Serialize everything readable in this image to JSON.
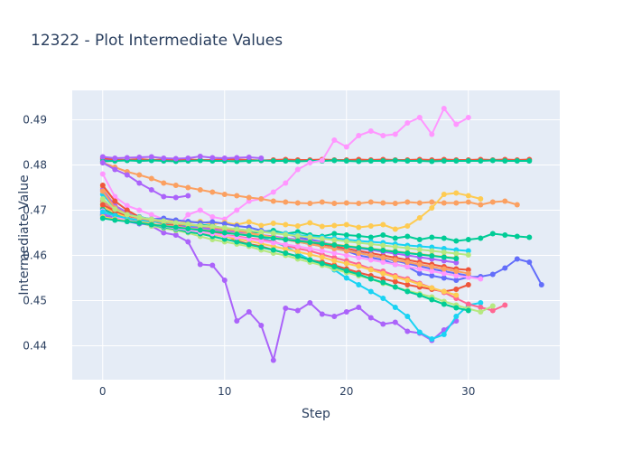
{
  "chart_data": {
    "type": "line",
    "title": "12322 - Plot Intermediate Values",
    "xlabel": "Step",
    "ylabel": "Intermediate Value",
    "xlim": [
      -2.5,
      37.5
    ],
    "ylim": [
      0.4325,
      0.4965
    ],
    "x_ticks": [
      0,
      10,
      20,
      30
    ],
    "y_ticks": [
      0.44,
      0.45,
      0.46,
      0.47,
      0.48,
      0.49
    ],
    "grid": true,
    "plot_bg": "#e5ecf6",
    "series": [
      {
        "color": "#636efa",
        "values": [
          0.4812,
          0.481,
          0.4811,
          0.4809,
          0.481,
          0.4811,
          0.481,
          0.4812
        ]
      },
      {
        "color": "#ef553b",
        "values": [
          0.4815,
          0.4812,
          0.4811,
          0.4813,
          0.4811,
          0.4812,
          0.4811,
          0.4812,
          0.4811,
          0.4811,
          0.4813,
          0.4812,
          0.4811,
          0.481,
          0.4811,
          0.4812,
          0.4811,
          0.4811,
          0.4812,
          0.4811,
          0.4811,
          0.4812,
          0.4811,
          0.4812,
          0.4811,
          0.4811,
          0.4812,
          0.4811,
          0.4812,
          0.4811,
          0.4811,
          0.4812,
          0.4811,
          0.4812,
          0.4811,
          0.4812
        ]
      },
      {
        "color": "#00cc96",
        "values": [
          0.4808,
          0.4809,
          0.481,
          0.4809,
          0.481,
          0.4809,
          0.4808,
          0.4809,
          0.481,
          0.4809,
          0.4809,
          0.4808,
          0.4809,
          0.481,
          0.4809,
          0.4809,
          0.4808,
          0.4809,
          0.4809,
          0.481,
          0.4809,
          0.4808,
          0.4809,
          0.4809,
          0.481,
          0.4809,
          0.4809,
          0.4808,
          0.4809,
          0.4809,
          0.4809,
          0.4809,
          0.481,
          0.4809,
          0.4809,
          0.4809
        ]
      },
      {
        "color": "#ab63fa",
        "values": [
          0.4818,
          0.4815,
          0.4816,
          0.4817,
          0.4818,
          0.4815,
          0.4814,
          0.4815,
          0.4819,
          0.4816,
          0.4815,
          0.4816,
          0.4817,
          0.4815
        ]
      },
      {
        "color": "#ff97ff",
        "values": [
          0.478,
          0.473,
          0.471,
          0.47,
          0.469,
          0.468,
          0.466,
          0.469,
          0.47,
          0.4685,
          0.468,
          0.47,
          0.472,
          0.4725,
          0.474,
          0.476,
          0.479,
          0.4805,
          0.481,
          0.4855,
          0.484,
          0.4865,
          0.4875,
          0.4865,
          0.4868,
          0.4893,
          0.4905,
          0.4868,
          0.4925,
          0.489,
          0.4905
        ]
      },
      {
        "color": "#fba061",
        "values": [
          0.4805,
          0.4795,
          0.4785,
          0.4778,
          0.477,
          0.476,
          0.4755,
          0.475,
          0.4745,
          0.474,
          0.4735,
          0.4732,
          0.4728,
          0.4725,
          0.472,
          0.4718,
          0.4716,
          0.4715,
          0.4718,
          0.4715,
          0.4716,
          0.4715,
          0.4718,
          0.4716,
          0.4715,
          0.4718,
          0.4716,
          0.4718,
          0.4716,
          0.4716,
          0.4718,
          0.4712,
          0.4718,
          0.472,
          0.4712
        ]
      },
      {
        "color": "#ab63fa",
        "values": [
          0.4805,
          0.479,
          0.4778,
          0.476,
          0.4745,
          0.473,
          0.4728,
          0.4732
        ]
      },
      {
        "color": "#fecb52",
        "values": [
          0.475,
          0.471,
          0.4695,
          0.4685,
          0.468,
          0.4675,
          0.4678,
          0.4672,
          0.4675,
          0.4669,
          0.4673,
          0.4668,
          0.4674,
          0.4666,
          0.4671,
          0.4668,
          0.4665,
          0.4672,
          0.4664,
          0.4666,
          0.4668,
          0.4662,
          0.4665,
          0.4668,
          0.4658,
          0.4665,
          0.4683,
          0.4705,
          0.4735,
          0.4738,
          0.4732,
          0.4725
        ]
      },
      {
        "color": "#00cc96",
        "values": [
          0.469,
          0.4685,
          0.4678,
          0.4672,
          0.4668,
          0.4665,
          0.466,
          0.4664,
          0.4668,
          0.4665,
          0.466,
          0.4655,
          0.465,
          0.4652,
          0.4655,
          0.4648,
          0.4652,
          0.4645,
          0.4642,
          0.4648,
          0.4645,
          0.4643,
          0.464,
          0.4645,
          0.4638,
          0.4642,
          0.4635,
          0.464,
          0.4638,
          0.4632,
          0.4635,
          0.4638,
          0.4648,
          0.4645,
          0.4642,
          0.464
        ]
      },
      {
        "color": "#636efa",
        "values": [
          0.4705,
          0.4695,
          0.469,
          0.4685,
          0.468,
          0.4682,
          0.4678,
          0.4675,
          0.4672,
          0.4674,
          0.467,
          0.4665,
          0.4662,
          0.4655,
          0.465,
          0.4648,
          0.464,
          0.4635,
          0.463,
          0.462,
          0.461,
          0.46,
          0.4595,
          0.459,
          0.458,
          0.4575,
          0.456,
          0.4555,
          0.455,
          0.4545,
          0.4552,
          0.4553,
          0.4558,
          0.4572,
          0.4592,
          0.4585,
          0.4535
        ]
      },
      {
        "color": "#ab63fa",
        "values": [
          0.4745,
          0.471,
          0.4695,
          0.468,
          0.4665,
          0.465,
          0.4645,
          0.463,
          0.458,
          0.4578,
          0.4545,
          0.4455,
          0.4475,
          0.4445,
          0.4368,
          0.4483,
          0.4478,
          0.4495,
          0.447,
          0.4465,
          0.4475,
          0.4485,
          0.4462,
          0.4448,
          0.4452,
          0.4432,
          0.4428,
          0.4412,
          0.4435,
          0.4455
        ]
      },
      {
        "color": "#ef553b",
        "values": [
          0.4755,
          0.472,
          0.47,
          0.4685,
          0.467,
          0.4662,
          0.4658,
          0.4665,
          0.4655,
          0.4652,
          0.4645,
          0.4632,
          0.4625,
          0.462,
          0.4612,
          0.4605,
          0.4598,
          0.459,
          0.4585,
          0.4578,
          0.457,
          0.4562,
          0.4555,
          0.4548,
          0.4542,
          0.4535,
          0.453,
          0.4525,
          0.452,
          0.4525,
          0.4535
        ]
      },
      {
        "color": "#19d3f3",
        "values": [
          0.4735,
          0.4705,
          0.469,
          0.4685,
          0.468,
          0.4675,
          0.467,
          0.4665,
          0.4662,
          0.466,
          0.4658,
          0.4655,
          0.465,
          0.464,
          0.463,
          0.462,
          0.4605,
          0.459,
          0.458,
          0.4568,
          0.455,
          0.4535,
          0.452,
          0.4505,
          0.4485,
          0.4465,
          0.443,
          0.4415,
          0.4425,
          0.4465,
          0.449,
          0.4495
        ]
      },
      {
        "color": "#ff6692",
        "values": [
          0.472,
          0.4698,
          0.4685,
          0.4675,
          0.467,
          0.4665,
          0.466,
          0.4655,
          0.465,
          0.4648,
          0.4645,
          0.4642,
          0.4638,
          0.4635,
          0.463,
          0.4622,
          0.4615,
          0.461,
          0.4602,
          0.4595,
          0.4588,
          0.458,
          0.457,
          0.4565,
          0.4555,
          0.4548,
          0.4538,
          0.4528,
          0.4518,
          0.4505,
          0.4492,
          0.4485,
          0.4478,
          0.449
        ]
      },
      {
        "color": "#b6e880",
        "values": [
          0.4715,
          0.4695,
          0.468,
          0.4672,
          0.4665,
          0.466,
          0.4655,
          0.465,
          0.4642,
          0.4635,
          0.463,
          0.4625,
          0.462,
          0.4612,
          0.4605,
          0.46,
          0.4592,
          0.4585,
          0.4578,
          0.457,
          0.4562,
          0.4555,
          0.4548,
          0.4538,
          0.453,
          0.4522,
          0.4515,
          0.4508,
          0.4498,
          0.449,
          0.4482,
          0.4475,
          0.4488
        ]
      },
      {
        "color": "#fecb52",
        "values": [
          0.4708,
          0.4694,
          0.4684,
          0.4676,
          0.467,
          0.4664,
          0.466,
          0.4656,
          0.4652,
          0.4646,
          0.4642,
          0.4636,
          0.4632,
          0.4626,
          0.462,
          0.4614,
          0.4608,
          0.4602,
          0.4596,
          0.4588,
          0.4582,
          0.4576,
          0.4568,
          0.456,
          0.4552,
          0.4545,
          0.4536,
          0.4528,
          0.452,
          0.4512
        ]
      },
      {
        "color": "#00cc96",
        "values": [
          0.4702,
          0.469,
          0.468,
          0.4672,
          0.4668,
          0.4662,
          0.4658,
          0.4652,
          0.4648,
          0.4642,
          0.4636,
          0.463,
          0.4624,
          0.4618,
          0.4612,
          0.4605,
          0.4598,
          0.459,
          0.4582,
          0.4575,
          0.4566,
          0.4558,
          0.4548,
          0.454,
          0.453,
          0.452,
          0.4512,
          0.4502,
          0.4492,
          0.4484,
          0.4478
        ]
      },
      {
        "color": "#ef553b",
        "values": [
          0.4712,
          0.4698,
          0.4688,
          0.4682,
          0.4676,
          0.467,
          0.4666,
          0.4662,
          0.4658,
          0.4655,
          0.4652,
          0.4648,
          0.4645,
          0.4642,
          0.4638,
          0.4635,
          0.4632,
          0.4628,
          0.4624,
          0.462,
          0.4615,
          0.461,
          0.4605,
          0.46,
          0.4595,
          0.459,
          0.4585,
          0.458,
          0.4575,
          0.457,
          0.4568
        ]
      },
      {
        "color": "#636efa",
        "values": [
          0.4688,
          0.468,
          0.4675,
          0.467,
          0.4668,
          0.4665,
          0.4662,
          0.466,
          0.4658,
          0.4655,
          0.4652,
          0.465,
          0.4646,
          0.4642,
          0.4638,
          0.4635,
          0.463,
          0.4625,
          0.462,
          0.4615,
          0.461,
          0.4606,
          0.46,
          0.4595,
          0.4588,
          0.4582,
          0.4576,
          0.457,
          0.4565,
          0.456,
          0.4555
        ]
      },
      {
        "color": "#ab63fa",
        "values": [
          0.4692,
          0.4682,
          0.4676,
          0.4672,
          0.4668,
          0.4666,
          0.4664,
          0.4662,
          0.466,
          0.4658,
          0.4655,
          0.4652,
          0.4648,
          0.4645,
          0.4642,
          0.4638,
          0.4635,
          0.4632,
          0.4628,
          0.4624,
          0.462,
          0.4616,
          0.4612,
          0.4608,
          0.4604,
          0.46,
          0.4596,
          0.4592,
          0.4588,
          0.4584
        ]
      },
      {
        "color": "#ff97ff",
        "values": [
          0.4698,
          0.4686,
          0.4678,
          0.4672,
          0.4668,
          0.4664,
          0.466,
          0.4656,
          0.4652,
          0.4648,
          0.4644,
          0.464,
          0.4636,
          0.4632,
          0.4628,
          0.4624,
          0.462,
          0.4615,
          0.461,
          0.4605,
          0.46,
          0.4595,
          0.459,
          0.4585,
          0.458,
          0.4575,
          0.457,
          0.4565,
          0.456,
          0.4555,
          0.4552,
          0.4548
        ]
      },
      {
        "color": "#19d3f3",
        "values": [
          0.4696,
          0.4688,
          0.4682,
          0.4678,
          0.4675,
          0.4672,
          0.467,
          0.4668,
          0.4665,
          0.4662,
          0.466,
          0.4658,
          0.4655,
          0.4652,
          0.465,
          0.4648,
          0.4645,
          0.4642,
          0.464,
          0.4638,
          0.4635,
          0.4632,
          0.463,
          0.4628,
          0.4625,
          0.4622,
          0.462,
          0.4618,
          0.4615,
          0.4612,
          0.461
        ]
      },
      {
        "color": "#fba061",
        "values": [
          0.4742,
          0.4705,
          0.469,
          0.4682,
          0.4678,
          0.4674,
          0.467,
          0.4668,
          0.4665,
          0.4662,
          0.4658,
          0.4655,
          0.465,
          0.4645,
          0.464,
          0.4635,
          0.463,
          0.4625,
          0.462,
          0.4615,
          0.461,
          0.4605,
          0.46,
          0.4595,
          0.459,
          0.4585,
          0.458,
          0.4575,
          0.457,
          0.4565,
          0.456
        ]
      },
      {
        "color": "#b6e880",
        "values": [
          0.4725,
          0.4702,
          0.469,
          0.4684,
          0.468,
          0.4676,
          0.4672,
          0.4669,
          0.4666,
          0.4664,
          0.4661,
          0.4658,
          0.4655,
          0.4652,
          0.4649,
          0.4646,
          0.4643,
          0.464,
          0.4637,
          0.4634,
          0.4631,
          0.4628,
          0.4625,
          0.4622,
          0.4619,
          0.4616,
          0.4613,
          0.461,
          0.4607,
          0.4604,
          0.4601
        ]
      },
      {
        "color": "#fecb52",
        "values": [
          0.4685,
          0.468,
          0.4676,
          0.4672,
          0.4669,
          0.4666,
          0.4663,
          0.466,
          0.4657,
          0.4654,
          0.4651,
          0.4648,
          0.4645,
          0.4642,
          0.4639,
          0.4636,
          0.4633,
          0.463,
          0.4627,
          0.4624,
          0.4621,
          0.4618,
          0.4615,
          0.4612,
          0.4609,
          0.4606,
          0.4603,
          0.46,
          0.4597,
          0.4594
        ]
      },
      {
        "color": "#00cc96",
        "values": [
          0.4682,
          0.4678,
          0.4675,
          0.4672,
          0.4668,
          0.4665,
          0.4662,
          0.4659,
          0.4656,
          0.4653,
          0.465,
          0.4647,
          0.4644,
          0.4641,
          0.4638,
          0.4635,
          0.4632,
          0.4629,
          0.4626,
          0.4623,
          0.462,
          0.4617,
          0.4614,
          0.4611,
          0.4608,
          0.4605,
          0.4602,
          0.4599,
          0.4596,
          0.4593
        ]
      }
    ]
  }
}
